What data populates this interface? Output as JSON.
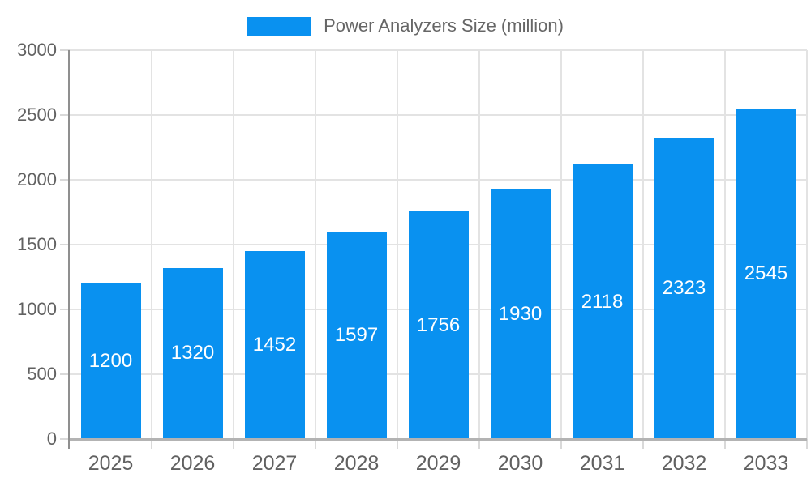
{
  "chart_data": {
    "type": "bar",
    "title": "Power Analyzers Size (million)",
    "legend_entries": [
      "Power Analyzers Size (million)"
    ],
    "legend_position": "top-center",
    "categories": [
      "2025",
      "2026",
      "2027",
      "2028",
      "2029",
      "2030",
      "2031",
      "2032",
      "2033"
    ],
    "series": [
      {
        "name": "Power Analyzers Size (million)",
        "values": [
          1200,
          1320,
          1452,
          1597,
          1756,
          1930,
          2118,
          2323,
          2545
        ]
      }
    ],
    "xlabel": "",
    "ylabel": "",
    "ylim": [
      0,
      3000
    ],
    "yticks": [
      0,
      500,
      1000,
      1500,
      2000,
      2500,
      3000
    ],
    "grid": true,
    "value_labels_shown": true,
    "colors": {
      "bar": "#0991f0",
      "bar_value_text": "#ffffff",
      "axis_text": "#616161",
      "legend_text": "#666666",
      "gridline": "#e3e3e3",
      "tick": "#d9d9d9",
      "y_axis_line": "#8f8f8f",
      "x_axis_line": "#b3b3b3",
      "background": "#ffffff"
    }
  }
}
